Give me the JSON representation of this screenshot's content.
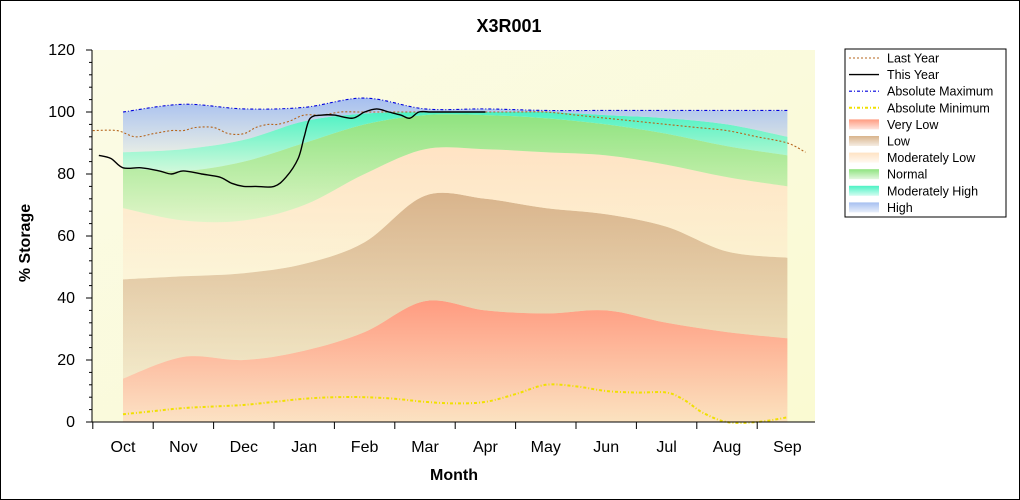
{
  "chart_data": {
    "type": "area",
    "title": "X3R001",
    "xlabel": "Month",
    "ylabel": "% Storage",
    "ylim": [
      0,
      120
    ],
    "yticks": [
      0,
      20,
      40,
      60,
      80,
      100,
      120
    ],
    "categories": [
      "Oct",
      "Nov",
      "Dec",
      "Jan",
      "Feb",
      "Mar",
      "Apr",
      "May",
      "Jun",
      "Jul",
      "Aug",
      "Sep"
    ],
    "legend_position": "right",
    "bands": [
      {
        "name": "Very Low",
        "color": "#ff9b80",
        "lower": [
          0,
          0,
          0,
          0,
          0,
          0,
          0,
          0,
          0,
          0,
          0,
          0
        ],
        "upper": [
          14,
          21,
          20,
          23,
          29,
          39,
          36,
          35,
          36,
          32,
          29,
          27
        ]
      },
      {
        "name": "Low",
        "color": "#d9b48c",
        "lower": [
          14,
          21,
          20,
          23,
          29,
          39,
          36,
          35,
          36,
          32,
          29,
          27
        ],
        "upper": [
          46,
          47,
          48,
          51,
          58,
          73,
          72,
          69,
          67,
          63,
          55,
          53
        ]
      },
      {
        "name": "Moderately Low",
        "color": "#ffe3c4",
        "lower": [
          46,
          47,
          48,
          51,
          58,
          73,
          72,
          69,
          67,
          63,
          55,
          53
        ],
        "upper": [
          69,
          65,
          65,
          70,
          80,
          88,
          88,
          87,
          86,
          83,
          79,
          76
        ]
      },
      {
        "name": "Normal",
        "color": "#8fe37f",
        "lower": [
          69,
          65,
          65,
          70,
          80,
          88,
          88,
          87,
          86,
          83,
          79,
          76
        ],
        "upper": [
          82,
          81,
          84,
          90,
          96,
          99,
          99,
          98,
          96,
          93,
          89,
          86
        ]
      },
      {
        "name": "Moderately High",
        "color": "#4cf2c4",
        "lower": [
          82,
          81,
          84,
          90,
          96,
          99,
          99,
          98,
          96,
          93,
          89,
          86
        ],
        "upper": [
          87,
          88,
          91,
          97,
          99.5,
          100,
          100,
          100,
          99,
          98,
          96,
          92
        ]
      },
      {
        "name": "High",
        "color": "#a6bff0",
        "lower": [
          87,
          88,
          91,
          97,
          99.5,
          100,
          100,
          100,
          99,
          98,
          96,
          92
        ],
        "upper": [
          100,
          102.5,
          101,
          101.5,
          104.5,
          101,
          101,
          100.5,
          100.5,
          100.5,
          100.5,
          100.5
        ]
      }
    ],
    "series": [
      {
        "name": "Last Year",
        "color": "#b5651d",
        "style": "dotted",
        "x": [
          -0.5,
          -0.1,
          0.2,
          0.5,
          0.8,
          1.0,
          1.2,
          1.5,
          1.75,
          2.0,
          2.2,
          2.4,
          2.55,
          2.75,
          3.0,
          3.3,
          3.6,
          3.9,
          4.2,
          4.5,
          4.8,
          5.1,
          5.5,
          6.0,
          6.5,
          7.0,
          7.5,
          8.0,
          8.5,
          9.0,
          9.5,
          10.0,
          10.5,
          11.0,
          11.3
        ],
        "y": [
          94,
          94,
          92,
          93,
          94,
          94,
          95,
          95,
          93,
          93,
          95,
          96,
          96,
          97,
          99,
          99,
          100,
          100,
          100,
          100,
          100,
          100,
          100,
          100,
          100,
          100,
          99,
          98,
          97,
          96,
          95,
          94,
          92,
          90,
          87
        ]
      },
      {
        "name": "This Year",
        "color": "#000000",
        "style": "solid",
        "x": [
          -0.4,
          -0.2,
          0,
          0.3,
          0.6,
          0.8,
          1.0,
          1.3,
          1.6,
          1.8,
          2.0,
          2.2,
          2.5,
          2.7,
          2.9,
          3.0,
          3.1,
          3.3,
          3.5,
          3.8,
          4.0,
          4.2,
          4.4,
          4.6,
          4.75,
          4.9,
          5.1,
          5.4,
          5.7,
          6.0
        ],
        "y": [
          86,
          85,
          82,
          82,
          81,
          80,
          81,
          80,
          79,
          77,
          76,
          76,
          76,
          79,
          85,
          92,
          98,
          99,
          99,
          98,
          100,
          101,
          100,
          99,
          98,
          100,
          100,
          100,
          100,
          100
        ]
      },
      {
        "name": "Absolute Maximum",
        "color": "#0000dd",
        "style": "dashdot",
        "x": [
          0,
          1,
          2,
          3,
          4,
          5,
          6,
          7,
          8,
          9,
          10,
          11
        ],
        "y": [
          100,
          102.5,
          101,
          101.5,
          104.5,
          101,
          101,
          100.5,
          100.5,
          100.5,
          100.5,
          100.5
        ]
      },
      {
        "name": "Absolute Minimum",
        "color": "#f0e000",
        "style": "dashdot",
        "x": [
          0,
          0.5,
          1,
          1.5,
          2,
          2.5,
          3,
          3.5,
          4,
          4.5,
          5,
          5.5,
          6,
          6.5,
          7,
          7.5,
          8,
          8.5,
          9,
          9.3,
          9.6,
          10,
          10.5,
          11
        ],
        "y": [
          2.5,
          3.5,
          4.5,
          5,
          5.5,
          6.5,
          7.5,
          8,
          8,
          7.5,
          6.5,
          6,
          6.5,
          9,
          12,
          11.5,
          10,
          9.5,
          9.5,
          7,
          3,
          0,
          0,
          1.5
        ]
      }
    ],
    "legend": [
      "Last Year",
      "This Year",
      "Absolute Maximum",
      "Absolute Minimum",
      "Very Low",
      "Low",
      "Moderately Low",
      "Normal",
      "Moderately High",
      "High"
    ]
  }
}
